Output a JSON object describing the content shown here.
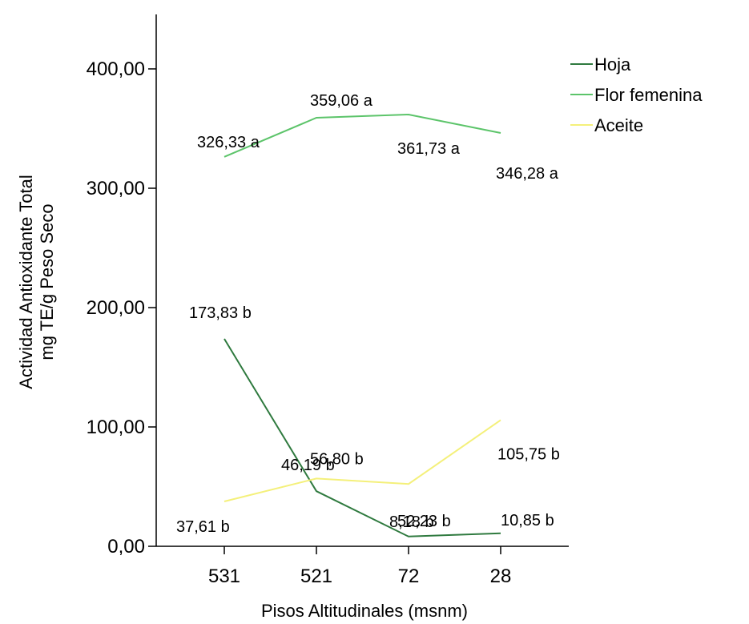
{
  "chart_data": {
    "type": "line",
    "categories": [
      "531",
      "521",
      "72",
      "28"
    ],
    "xlabel": "Pisos Altitudinales (msnm)",
    "ylabel_lines": [
      "Actividad Antioxidante Total",
      "mg TE/g Peso Seco"
    ],
    "ylim": [
      0,
      400
    ],
    "yticks": [
      0,
      100,
      200,
      300,
      400
    ],
    "ytick_labels": [
      "0,00",
      "100,00",
      "200,00",
      "300,00",
      "400,00"
    ],
    "grid": false,
    "legend_position": "top-right",
    "series": [
      {
        "name": "Hoja",
        "color": "#2f7a3f",
        "values": [
          173.83,
          46.19,
          8.18,
          10.85
        ],
        "labels": [
          "173,83 b",
          "46,19 b",
          "8,18 b",
          "10,85 b"
        ]
      },
      {
        "name": "Flor femenina",
        "color": "#5cc46a",
        "values": [
          326.33,
          359.06,
          361.73,
          346.28
        ],
        "labels": [
          "326,33 a",
          "359,06 a",
          "361,73 a",
          "346,28 a"
        ]
      },
      {
        "name": "Aceite",
        "color": "#f4f07a",
        "values": [
          37.61,
          56.8,
          52.23,
          105.75
        ],
        "labels": [
          "37,61 b",
          "56,80 b",
          "52,23 b",
          "105,75 b"
        ]
      }
    ]
  }
}
